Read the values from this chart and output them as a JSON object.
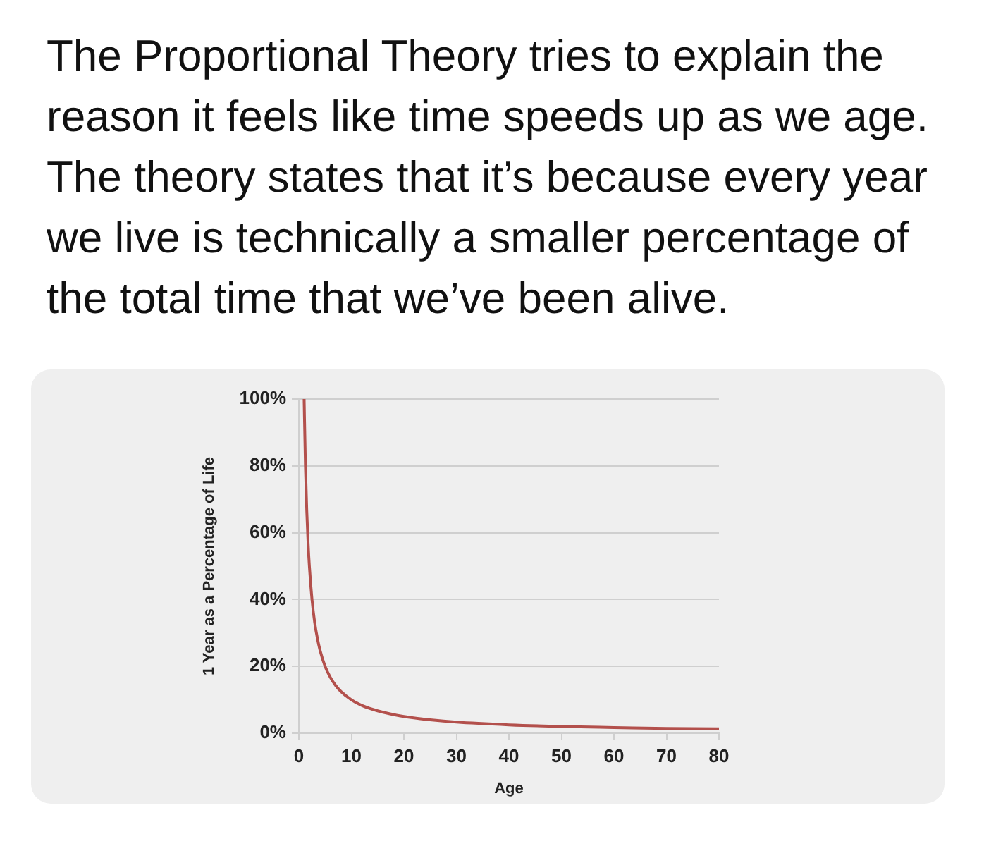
{
  "chart_data": {
    "type": "line",
    "title": "The Proportional Theory tries to explain the reason it feels like time speeds up as we age. The theory states that it’s because every year we live is technically a smaller percentage of the total time that we’ve been alive.",
    "xlabel": "Age",
    "ylabel": "1 Year as a Percentage of Life",
    "x": [
      1,
      1.25,
      1.5,
      1.75,
      2,
      2.5,
      3,
      3.5,
      4,
      5,
      6,
      7,
      8,
      10,
      12,
      15,
      20,
      25,
      30,
      40,
      50,
      60,
      70,
      80
    ],
    "values": [
      100,
      80,
      66.7,
      57.1,
      50,
      40,
      33.3,
      28.6,
      25,
      20,
      16.7,
      14.3,
      12.5,
      10,
      8.3,
      6.7,
      5,
      4,
      3.3,
      2.5,
      2,
      1.7,
      1.4,
      1.3
    ],
    "color": "#b3504c",
    "xlim": [
      0,
      80
    ],
    "xticks": [
      0,
      10,
      20,
      30,
      40,
      50,
      60,
      70,
      80
    ],
    "ylim": [
      0,
      100
    ],
    "yticks": [
      {
        "value": 0,
        "label": "0%"
      },
      {
        "value": 20,
        "label": "20%"
      },
      {
        "value": 40,
        "label": "40%"
      },
      {
        "value": 60,
        "label": "60%"
      },
      {
        "value": 80,
        "label": "80%"
      },
      {
        "value": 100,
        "label": "100%"
      }
    ],
    "grid": "y"
  }
}
